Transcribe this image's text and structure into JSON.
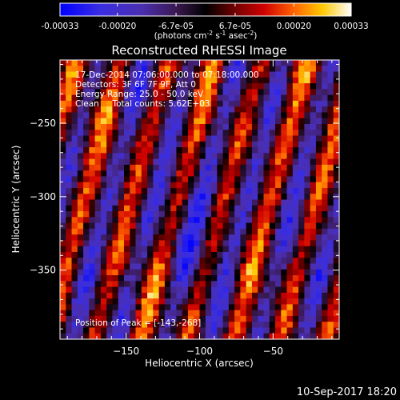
{
  "colorbar": {
    "tick_labels": [
      "-0.00033",
      "-0.00020",
      "-6.7e-05",
      "6.7e-05",
      "0.00020",
      "0.00033"
    ],
    "tick_values": [
      -0.00033,
      -0.0002,
      -6.7e-05,
      6.7e-05,
      0.0002,
      0.00033
    ],
    "range": [
      -0.00033,
      0.00033
    ],
    "units_prefix": "(photons cm",
    "units_exp1": "-2",
    "units_mid1": " s",
    "units_exp2": "-1",
    "units_mid2": " asec",
    "units_exp3": "-2",
    "units_suffix": ")",
    "colors": [
      "#0000ff",
      "#4b2fb0",
      "#5a2a6a",
      "#000000",
      "#7a0000",
      "#e00000",
      "#ff8000",
      "#ffd000",
      "#ffffff"
    ]
  },
  "annotations": {
    "time_range": "17-Dec-2014 07:06:00.000 to 07:18:00.000",
    "detectors": "Detectors: 3F 6F 7F 9F, Att 0",
    "energy_range": "Energy Range: 25.0 - 50.0 keV",
    "algorithm": "Clean     Total counts: 5.62E+03",
    "peak_position": "Position of Peak = [-143,-268]"
  },
  "footer": {
    "date": "10-Sep-2017 18:20"
  },
  "chart_data": {
    "type": "heatmap",
    "title": "Reconstructed RHESSI Image",
    "xlabel": "Heliocentric X (arcsec)",
    "ylabel": "Heliocentric Y (arcsec)",
    "xlim": [
      -195,
      -5
    ],
    "ylim": [
      -397,
      -207
    ],
    "x_ticks": [
      -150,
      -100,
      -50
    ],
    "x_tick_labels": [
      "−150",
      "−100",
      "−50"
    ],
    "y_ticks": [
      -250,
      -300,
      -350
    ],
    "y_tick_labels": [
      "−250",
      "−300",
      "−350"
    ],
    "value_range": [
      -0.00033,
      0.00033
    ],
    "grid_size": [
      48,
      48
    ],
    "pattern": "diagonal fringe stripes",
    "peak": [
      -143,
      -268
    ],
    "grid": false
  }
}
